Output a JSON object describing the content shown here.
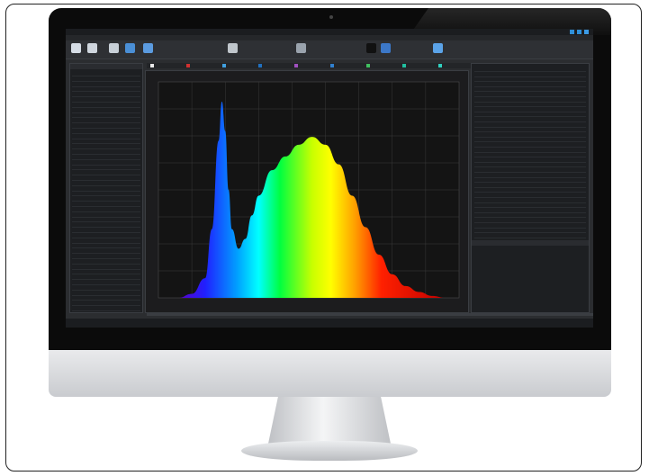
{
  "app": {
    "title": "",
    "menu": [],
    "toolbar_buttons": [
      {
        "icon": "open-icon",
        "color": "#d6dde6"
      },
      {
        "icon": "save-icon",
        "color": "#cfd6de"
      },
      {
        "icon": "search-icon",
        "color": "#c8d0d8"
      },
      {
        "icon": "measure-icon",
        "color": "#4a8fd6"
      },
      {
        "icon": "settings-icon",
        "color": "#5b9be0"
      },
      {
        "icon": "zoom-icon",
        "color": "#c0c6cc"
      },
      {
        "icon": "gear-icon",
        "color": "#9aa3ad"
      },
      {
        "icon": "color-icon",
        "color": "#111111"
      },
      {
        "icon": "chart-icon",
        "color": "#3c78c8"
      },
      {
        "icon": "export-icon",
        "color": "#5ba3e8"
      }
    ],
    "series": [
      {
        "color": "#e8e8e8"
      },
      {
        "color": "#d03030"
      },
      {
        "color": "#40a0e0"
      },
      {
        "color": "#2070c0"
      },
      {
        "color": "#a050c0"
      },
      {
        "color": "#3080d0"
      },
      {
        "color": "#40c060"
      },
      {
        "color": "#20c0a0"
      },
      {
        "color": "#30d0c0"
      }
    ]
  },
  "left_panel": {
    "rows": 46
  },
  "right_panel": {
    "rows": 34
  },
  "chart_data": {
    "type": "area",
    "title": "",
    "xlabel": "",
    "ylabel": "",
    "x": [
      380,
      400,
      420,
      430,
      440,
      445,
      450,
      455,
      460,
      470,
      480,
      490,
      500,
      520,
      540,
      560,
      580,
      600,
      620,
      640,
      660,
      680,
      700,
      720,
      740,
      760,
      780
    ],
    "values": [
      0.0,
      0.02,
      0.1,
      0.35,
      0.8,
      1.0,
      0.85,
      0.55,
      0.35,
      0.25,
      0.3,
      0.42,
      0.52,
      0.65,
      0.72,
      0.78,
      0.82,
      0.78,
      0.68,
      0.52,
      0.36,
      0.22,
      0.12,
      0.06,
      0.03,
      0.01,
      0.0
    ],
    "xlim": [
      350,
      800
    ],
    "ylim": [
      0,
      1.1
    ],
    "grid": true,
    "fill": "visible-spectrum-gradient"
  }
}
